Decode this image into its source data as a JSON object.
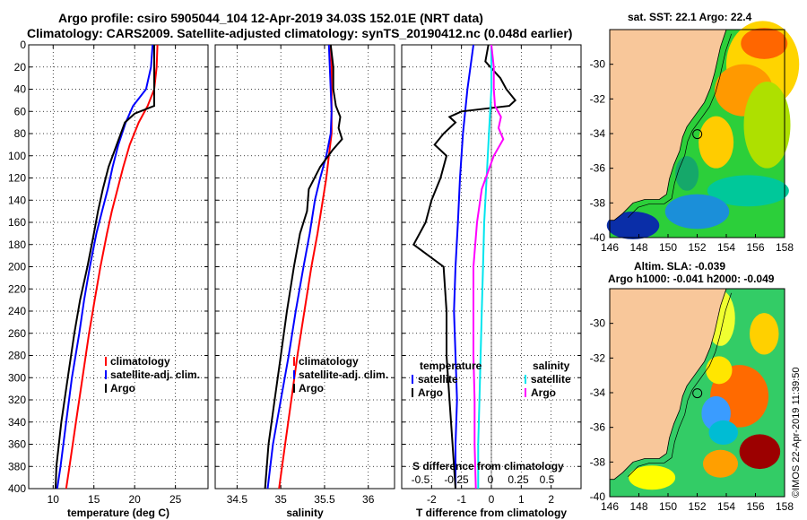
{
  "header": {
    "line1": "Argo profile: csiro 5905044_104 12-Apr-2019 34.03S 152.01E (NRT data)",
    "line2": "Climatology: CARS2009. Satellite-adjusted climatology: synTS_20190412.nc (0.048d earlier)"
  },
  "right_titles": {
    "sst": "sat. SST: 22.1 Argo: 22.4",
    "sla1": "Altim. SLA: -0.039",
    "sla2": "Argo h1000: -0.041 h2000: -0.049"
  },
  "footer_note": "©IMOS 22-Apr-2019 11:39:50",
  "colors": {
    "red": "#ff0000",
    "blue": "#0000ff",
    "black": "#000000",
    "cyan": "#00e5ee",
    "magenta": "#ff00ff",
    "land": "#f8c79a"
  },
  "chart_data": [
    {
      "type": "line",
      "name": "temperature-profile",
      "xlabel": "temperature (deg C)",
      "xlim": [
        7,
        29
      ],
      "xticks": [
        10,
        15,
        20,
        25
      ],
      "ylim": [
        0,
        400
      ],
      "yticks": [
        0,
        20,
        40,
        60,
        80,
        100,
        120,
        140,
        160,
        180,
        200,
        220,
        240,
        260,
        280,
        300,
        320,
        340,
        360,
        380,
        400
      ],
      "grid": true,
      "legend": [
        "climatology",
        "satellite-adj. clim.",
        "Argo"
      ],
      "series": [
        {
          "name": "climatology",
          "color": "red",
          "depth": [
            0,
            20,
            40,
            55,
            70,
            90,
            110,
            130,
            150,
            170,
            200,
            230,
            260,
            300,
            340,
            380,
            400
          ],
          "values": [
            22.8,
            22.7,
            22.4,
            21.6,
            20.5,
            19.4,
            18.6,
            17.9,
            17.2,
            16.6,
            15.8,
            15.1,
            14.4,
            13.6,
            12.8,
            12.0,
            11.6
          ]
        },
        {
          "name": "satellite-adj. clim.",
          "color": "blue",
          "depth": [
            0,
            20,
            40,
            55,
            70,
            90,
            110,
            130,
            150,
            170,
            200,
            230,
            260,
            300,
            340,
            380,
            400
          ],
          "values": [
            22.2,
            22.0,
            21.4,
            19.8,
            18.9,
            18.0,
            17.3,
            16.7,
            16.0,
            15.3,
            14.5,
            13.8,
            13.2,
            12.3,
            11.6,
            10.9,
            10.5
          ]
        },
        {
          "name": "Argo",
          "color": "black",
          "depth": [
            0,
            20,
            40,
            55,
            62,
            70,
            90,
            110,
            130,
            150,
            170,
            200,
            230,
            260,
            300,
            340,
            380,
            400
          ],
          "values": [
            22.4,
            22.4,
            22.4,
            22.4,
            20.0,
            18.8,
            17.8,
            16.8,
            16.1,
            15.5,
            15.0,
            14.2,
            13.3,
            12.6,
            11.8,
            11.0,
            10.4,
            10.3
          ]
        }
      ]
    },
    {
      "type": "line",
      "name": "salinity-profile",
      "xlabel": "salinity",
      "xlim": [
        34.25,
        36.3
      ],
      "xticks": [
        34.5,
        35,
        35.5,
        36
      ],
      "xticklabels": [
        "34.5",
        "35",
        "35.5",
        "36"
      ],
      "ylim": [
        0,
        400
      ],
      "grid": true,
      "legend": [
        "climatology",
        "satellite-adj. clim.",
        "Argo"
      ],
      "series": [
        {
          "name": "climatology",
          "color": "red",
          "depth": [
            0,
            20,
            40,
            60,
            80,
            100,
            120,
            140,
            170,
            200,
            240,
            280,
            320,
            360,
            400
          ],
          "values": [
            35.57,
            35.58,
            35.58,
            35.58,
            35.58,
            35.55,
            35.52,
            35.48,
            35.42,
            35.35,
            35.27,
            35.19,
            35.12,
            35.05,
            34.98
          ]
        },
        {
          "name": "satellite-adj. clim.",
          "color": "blue",
          "depth": [
            0,
            20,
            40,
            60,
            80,
            100,
            120,
            140,
            170,
            200,
            240,
            280,
            320,
            360,
            400
          ],
          "values": [
            35.55,
            35.56,
            35.57,
            35.58,
            35.57,
            35.52,
            35.45,
            35.39,
            35.33,
            35.26,
            35.17,
            35.09,
            35.0,
            34.91,
            34.85
          ]
        },
        {
          "name": "Argo",
          "color": "black",
          "depth": [
            0,
            20,
            40,
            55,
            65,
            75,
            85,
            95,
            110,
            130,
            150,
            170,
            200,
            240,
            280,
            320,
            360,
            400
          ],
          "values": [
            35.57,
            35.6,
            35.6,
            35.63,
            35.68,
            35.66,
            35.7,
            35.59,
            35.45,
            35.32,
            35.3,
            35.22,
            35.15,
            35.07,
            35.0,
            34.93,
            34.86,
            34.82
          ]
        }
      ]
    },
    {
      "type": "line",
      "name": "difference-profile",
      "xlabel": "T difference from climatology",
      "xlim": [
        -3,
        3
      ],
      "xticks": [
        -2,
        -1,
        0,
        1,
        2
      ],
      "xticklabels": [
        "-2",
        "-1",
        "0",
        "1",
        "2"
      ],
      "top_axis_label": "S difference from climatology",
      "top_ticks": [
        "-0.5",
        "-0.25",
        "0",
        "0.25",
        "0.5"
      ],
      "ylim": [
        0,
        400
      ],
      "grid": true,
      "legend_left_title": "temperature",
      "legend_right_title": "salinity",
      "legend_left": [
        "satellite",
        "Argo"
      ],
      "legend_right": [
        "satellite",
        "Argo"
      ],
      "series": [
        {
          "name": "T satellite",
          "color": "blue",
          "depth": [
            0,
            40,
            80,
            120,
            160,
            200,
            240,
            280,
            320,
            360,
            400
          ],
          "values": [
            -0.6,
            -0.8,
            -0.95,
            -1.05,
            -1.12,
            -1.2,
            -1.25,
            -1.2,
            -1.15,
            -1.2,
            -1.2
          ]
        },
        {
          "name": "T Argo",
          "color": "black",
          "depth": [
            0,
            15,
            30,
            40,
            50,
            55,
            60,
            65,
            70,
            80,
            90,
            100,
            120,
            140,
            160,
            180,
            200,
            240,
            280,
            320,
            360,
            400
          ],
          "values": [
            -0.1,
            -0.2,
            0.3,
            0.5,
            0.8,
            0.6,
            -1.0,
            -1.4,
            -1.2,
            -1.6,
            -1.9,
            -1.5,
            -1.7,
            -2.0,
            -2.2,
            -2.6,
            -1.6,
            -1.5,
            -1.5,
            -1.4,
            -1.3,
            -1.2
          ]
        },
        {
          "name": "S satellite",
          "color": "cyan",
          "depth": [
            0,
            40,
            80,
            120,
            160,
            200,
            240,
            280,
            320,
            360,
            400
          ],
          "values": [
            0.0,
            0.0,
            -0.02,
            -0.04,
            -0.06,
            -0.07,
            -0.08,
            -0.09,
            -0.1,
            -0.11,
            -0.11
          ]
        },
        {
          "name": "S Argo",
          "color": "magenta",
          "depth": [
            0,
            20,
            40,
            55,
            65,
            75,
            85,
            100,
            130,
            160,
            200,
            240,
            280,
            320,
            360,
            400
          ],
          "values": [
            0.0,
            0.02,
            0.02,
            0.03,
            0.08,
            0.06,
            0.1,
            0.02,
            -0.08,
            -0.12,
            -0.15,
            -0.15,
            -0.15,
            -0.14,
            -0.14,
            -0.13
          ]
        }
      ]
    },
    {
      "type": "heatmap",
      "name": "sst-map",
      "xlim": [
        146,
        158
      ],
      "ylim": [
        -40,
        -28
      ],
      "xticks": [
        146,
        148,
        150,
        152,
        154,
        156,
        158
      ],
      "yticks": [
        -30,
        -32,
        -34,
        -36,
        -38,
        -40
      ],
      "marker": {
        "lon": 152.01,
        "lat": -34.03
      }
    },
    {
      "type": "heatmap",
      "name": "sla-map",
      "xlim": [
        146,
        158
      ],
      "ylim": [
        -40,
        -28
      ],
      "xticks": [
        146,
        148,
        150,
        152,
        154,
        156,
        158
      ],
      "yticks": [
        -30,
        -32,
        -34,
        -36,
        -38,
        -40
      ],
      "marker": {
        "lon": 152.01,
        "lat": -34.03
      }
    }
  ]
}
